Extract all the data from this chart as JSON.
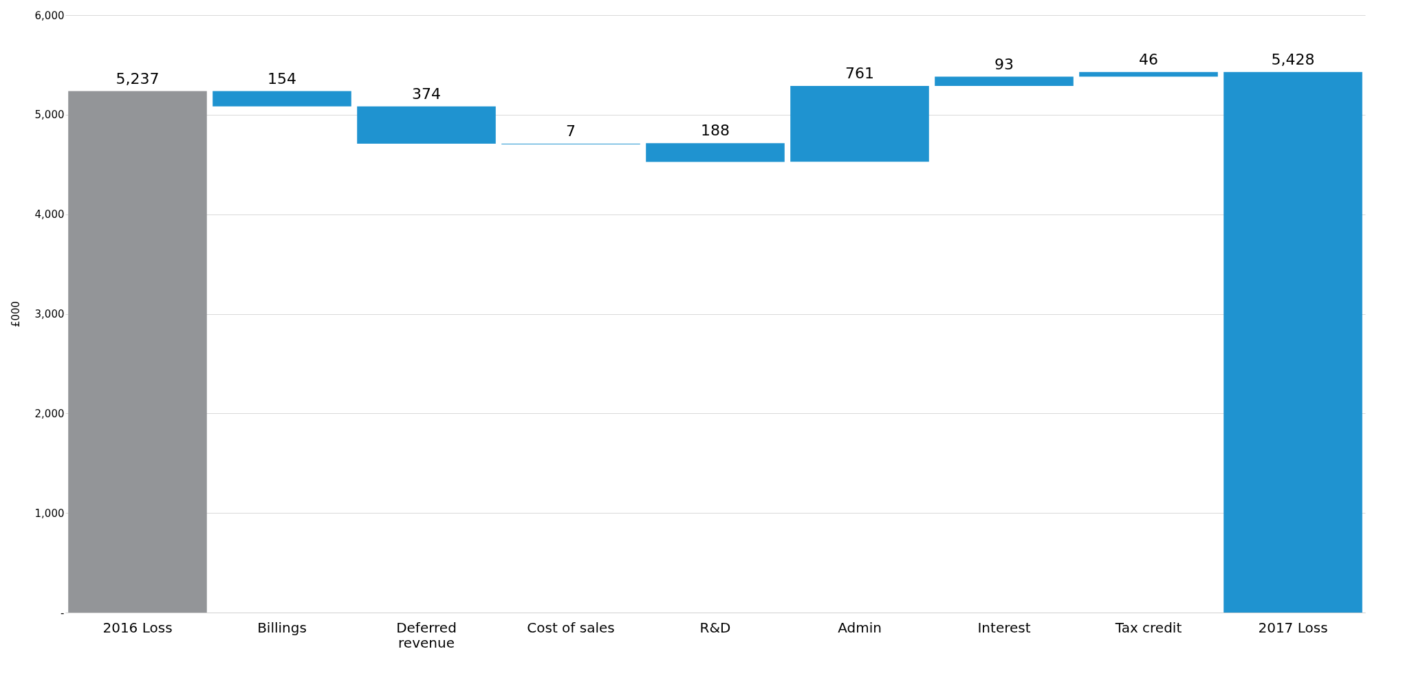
{
  "chart_data": {
    "type": "bar",
    "ylabel": "£000",
    "categories": [
      "2016 Loss",
      "Billings",
      "Deferred revenue",
      "Cost of sales",
      "R&D",
      "Admin",
      "Interest",
      "Tax credit",
      "2017 Loss"
    ],
    "values": [
      5237,
      154,
      374,
      7,
      188,
      761,
      93,
      46,
      5428
    ],
    "value_labels": [
      "5,237",
      "154",
      "374",
      "7",
      "188",
      "761",
      "93",
      "46",
      "5,428"
    ],
    "base": [
      0,
      5083,
      4709,
      4702,
      4526,
      4528,
      5289,
      5382,
      0
    ],
    "colors": [
      "#939598",
      "#1f93d0",
      "#1f93d0",
      "#1f93d0",
      "#1f93d0",
      "#1f93d0",
      "#1f93d0",
      "#1f93d0",
      "#1f93d0"
    ],
    "ylim": [
      0,
      6000
    ],
    "yticks": [
      {
        "value": 0,
        "label": "-"
      },
      {
        "value": 1000,
        "label": "1,000"
      },
      {
        "value": 2000,
        "label": "2,000"
      },
      {
        "value": 3000,
        "label": "3,000"
      },
      {
        "value": 4000,
        "label": "4,000"
      },
      {
        "value": 5000,
        "label": "5,000"
      },
      {
        "value": 6000,
        "label": "6,000"
      }
    ],
    "grid": "y"
  }
}
